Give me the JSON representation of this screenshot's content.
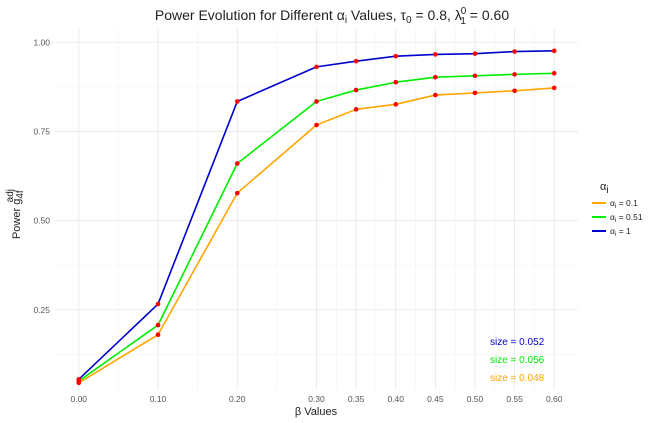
{
  "chart_data": {
    "type": "line",
    "title": {
      "prefix": "Power Evolution for Different ",
      "alpha": "α",
      "alpha_sub": "i",
      "values_label": " Values, ",
      "tau": "τ",
      "tau_sub": "0",
      "tau_value": " = 0.8, ",
      "lambda": "λ",
      "lambda_sup": "0",
      "lambda_sub": "1",
      "lambda_value": " = 0.60"
    },
    "xlabel": "β Values",
    "ylabel": {
      "main": "Power  g",
      "sub": "4f",
      "sup": "adj"
    },
    "x": [
      0.0,
      0.1,
      0.2,
      0.3,
      0.35,
      0.4,
      0.45,
      0.5,
      0.55,
      0.6
    ],
    "x_tick_labels": [
      "0.00",
      "0.10",
      "0.20",
      "0.30",
      "0.35",
      "0.40",
      "0.45",
      "0.50",
      "0.55",
      "0.60"
    ],
    "y_ticks": [
      0.25,
      0.5,
      0.75,
      1.0
    ],
    "y_tick_labels": [
      "0.25",
      "0.50",
      "0.75",
      "1.00"
    ],
    "xlim": [
      -0.03,
      0.63
    ],
    "ylim": [
      0.025,
      1.04
    ],
    "grid": true,
    "legend": {
      "position": "right",
      "title_symbol": "α",
      "title_sub": "i"
    },
    "point_color": "#ff0000",
    "series": [
      {
        "name": "α",
        "name_sub": "i",
        "name_rest": " = 0.1",
        "color": "#ffa500",
        "values": [
          0.045,
          0.18,
          0.577,
          0.768,
          0.812,
          0.826,
          0.852,
          0.858,
          0.864,
          0.872
        ]
      },
      {
        "name": "α",
        "name_sub": "i",
        "name_rest": " = 0.51",
        "color": "#00ee00",
        "values": [
          0.05,
          0.207,
          0.66,
          0.834,
          0.866,
          0.888,
          0.902,
          0.906,
          0.91,
          0.913
        ]
      },
      {
        "name": "α",
        "name_sub": "i",
        "name_rest": " = 1",
        "color": "#0000cd",
        "values": [
          0.055,
          0.266,
          0.834,
          0.931,
          0.947,
          0.961,
          0.966,
          0.968,
          0.974,
          0.976
        ]
      }
    ],
    "annotations": [
      {
        "text": "size = 0.052",
        "color": "#0000cd"
      },
      {
        "text": "size = 0.056",
        "color": "#00ee00"
      },
      {
        "text": "size = 0.048",
        "color": "#ffa500"
      }
    ]
  }
}
